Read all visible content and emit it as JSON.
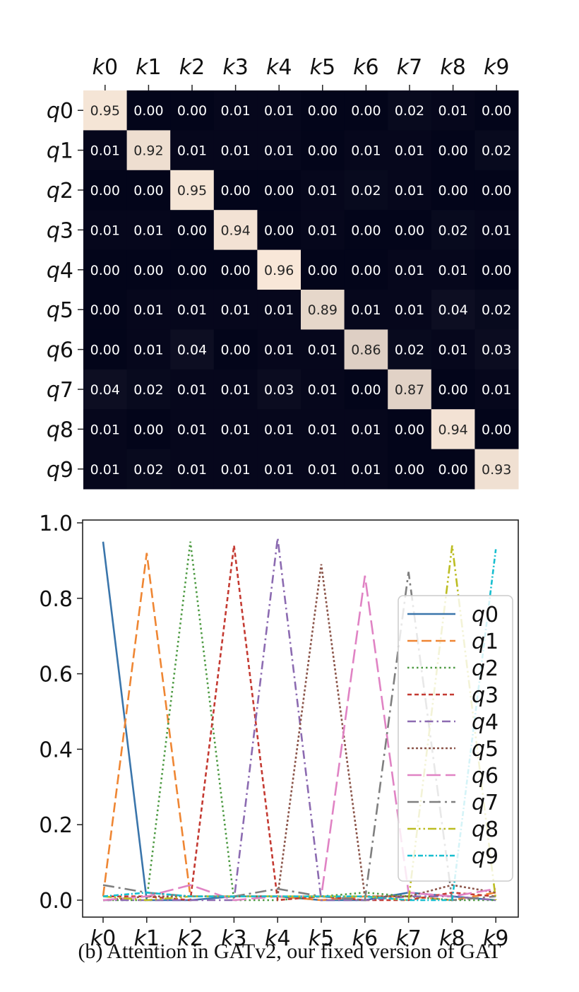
{
  "caption": "(b) Attention in GATv2, our fixed version of GAT",
  "chart_data": [
    {
      "type": "heatmap",
      "rows": [
        "q0",
        "q1",
        "q2",
        "q3",
        "q4",
        "q5",
        "q6",
        "q7",
        "q8",
        "q9"
      ],
      "cols": [
        "k0",
        "k1",
        "k2",
        "k3",
        "k4",
        "k5",
        "k6",
        "k7",
        "k8",
        "k9"
      ],
      "values": [
        [
          0.95,
          0.0,
          0.0,
          0.01,
          0.01,
          0.0,
          0.0,
          0.02,
          0.01,
          0.0
        ],
        [
          0.01,
          0.92,
          0.01,
          0.01,
          0.01,
          0.0,
          0.01,
          0.01,
          0.0,
          0.02
        ],
        [
          0.0,
          0.0,
          0.95,
          0.0,
          0.0,
          0.01,
          0.02,
          0.01,
          0.0,
          0.0
        ],
        [
          0.01,
          0.01,
          0.0,
          0.94,
          0.0,
          0.01,
          0.0,
          0.0,
          0.02,
          0.01
        ],
        [
          0.0,
          0.0,
          0.0,
          0.0,
          0.96,
          0.0,
          0.0,
          0.01,
          0.01,
          0.0
        ],
        [
          0.0,
          0.01,
          0.01,
          0.01,
          0.01,
          0.89,
          0.01,
          0.01,
          0.04,
          0.02
        ],
        [
          0.0,
          0.01,
          0.04,
          0.0,
          0.01,
          0.01,
          0.86,
          0.02,
          0.01,
          0.03
        ],
        [
          0.04,
          0.02,
          0.01,
          0.01,
          0.03,
          0.01,
          0.0,
          0.87,
          0.0,
          0.01
        ],
        [
          0.01,
          0.0,
          0.01,
          0.01,
          0.01,
          0.01,
          0.01,
          0.0,
          0.94,
          0.0
        ],
        [
          0.01,
          0.02,
          0.01,
          0.01,
          0.01,
          0.01,
          0.01,
          0.0,
          0.0,
          0.93
        ]
      ],
      "colormap": {
        "low": "#03051a",
        "high": "#f8e7d8"
      }
    },
    {
      "type": "line",
      "x": [
        "k0",
        "k1",
        "k2",
        "k3",
        "k4",
        "k5",
        "k6",
        "k7",
        "k8",
        "k9"
      ],
      "ylim": [
        0,
        1.0
      ],
      "yticks": [
        "0.0",
        "0.2",
        "0.4",
        "0.6",
        "0.8",
        "1.0"
      ],
      "legend_position": "right",
      "series": [
        {
          "name": "q0",
          "color": "#3a75ab",
          "dash": "solid",
          "values": [
            0.95,
            0.0,
            0.0,
            0.01,
            0.01,
            0.0,
            0.0,
            0.02,
            0.01,
            0.0
          ]
        },
        {
          "name": "q1",
          "color": "#ef8633",
          "dash": "dashed",
          "values": [
            0.01,
            0.92,
            0.01,
            0.01,
            0.01,
            0.0,
            0.01,
            0.01,
            0.0,
            0.02
          ]
        },
        {
          "name": "q2",
          "color": "#4d9a42",
          "dash": "dotted",
          "values": [
            0.0,
            0.0,
            0.95,
            0.0,
            0.0,
            0.01,
            0.02,
            0.01,
            0.0,
            0.0
          ]
        },
        {
          "name": "q3",
          "color": "#c43a32",
          "dash": "densedash",
          "values": [
            0.01,
            0.01,
            0.0,
            0.94,
            0.0,
            0.01,
            0.0,
            0.0,
            0.02,
            0.01
          ]
        },
        {
          "name": "q4",
          "color": "#8c6bb1",
          "dash": "dashdot",
          "values": [
            0.0,
            0.0,
            0.0,
            0.0,
            0.96,
            0.0,
            0.0,
            0.01,
            0.01,
            0.0
          ]
        },
        {
          "name": "q5",
          "color": "#8c564b",
          "dash": "densedot",
          "values": [
            0.0,
            0.01,
            0.01,
            0.01,
            0.01,
            0.89,
            0.01,
            0.01,
            0.04,
            0.02
          ]
        },
        {
          "name": "q6",
          "color": "#e083c4",
          "dash": "longdash",
          "values": [
            0.0,
            0.01,
            0.04,
            0.0,
            0.01,
            0.01,
            0.86,
            0.02,
            0.01,
            0.03
          ]
        },
        {
          "name": "q7",
          "color": "#7f7f7f",
          "dash": "longdashdot",
          "values": [
            0.04,
            0.02,
            0.01,
            0.01,
            0.03,
            0.01,
            0.0,
            0.87,
            0.0,
            0.01
          ]
        },
        {
          "name": "q8",
          "color": "#bcbd22",
          "dash": "dashdotdot",
          "values": [
            0.01,
            0.0,
            0.01,
            0.01,
            0.01,
            0.01,
            0.01,
            0.0,
            0.94,
            0.0
          ]
        },
        {
          "name": "q9",
          "color": "#17becf",
          "dash": "smalldashdot",
          "values": [
            0.01,
            0.02,
            0.01,
            0.01,
            0.01,
            0.01,
            0.01,
            0.0,
            0.0,
            0.93
          ]
        }
      ]
    }
  ]
}
